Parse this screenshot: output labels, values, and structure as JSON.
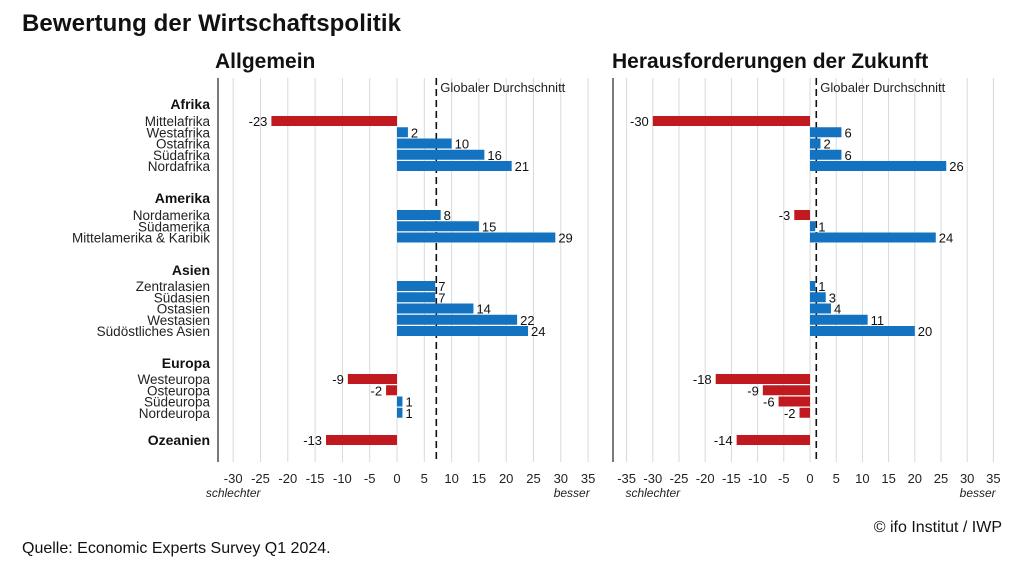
{
  "title": "Bewertung der Wirtschaftspolitik",
  "source": "Quelle: Economic Experts Survey Q1 2024.",
  "credit": "© ifo Institut / IWP",
  "reference_line_label": "Globaler Durchschnitt",
  "axis_labels": {
    "left": "schlechter",
    "right": "besser"
  },
  "colors": {
    "positive": "#1473c1",
    "negative": "#c0191f",
    "reference_line": "#111111",
    "grid": "#d9d9d9"
  },
  "chart_data": [
    {
      "type": "bar",
      "orientation": "horizontal",
      "title": "Allgemein",
      "xlim": [
        -35,
        35
      ],
      "xticks": [
        -30,
        -25,
        -20,
        -15,
        -10,
        -5,
        0,
        5,
        10,
        15,
        20,
        25,
        30,
        35
      ],
      "reference_value": 7.2,
      "groups": [
        {
          "name": "Afrika",
          "categories": [
            "Mittelafrika",
            "Westafrika",
            "Ostafrika",
            "Südafrika",
            "Nordafrika"
          ],
          "values": [
            -23,
            2,
            10,
            16,
            21
          ]
        },
        {
          "name": "Amerika",
          "categories": [
            "Nordamerika",
            "Südamerika",
            "Mittelamerika & Karibik"
          ],
          "values": [
            8,
            15,
            29
          ]
        },
        {
          "name": "Asien",
          "categories": [
            "Zentralasien",
            "Südasien",
            "Ostasien",
            "Westasien",
            "Südöstliches Asien"
          ],
          "values": [
            7,
            7,
            14,
            22,
            24
          ]
        },
        {
          "name": "Europa",
          "categories": [
            "Westeuropa",
            "Osteuropa",
            "Südeuropa",
            "Nordeuropa"
          ],
          "values": [
            -9,
            -2,
            1,
            1
          ]
        },
        {
          "name": "Ozeanien",
          "categories": [],
          "values": [
            -13
          ]
        }
      ]
    },
    {
      "type": "bar",
      "orientation": "horizontal",
      "title": "Herausforderungen der Zukunft",
      "xlim": [
        -35,
        35
      ],
      "xticks": [
        -35,
        -30,
        -25,
        -20,
        -15,
        -10,
        -5,
        0,
        5,
        10,
        15,
        20,
        25,
        30,
        35
      ],
      "reference_value": 1.2,
      "groups": [
        {
          "name": "Afrika",
          "categories": [
            "Mittelafrika",
            "Westafrika",
            "Ostafrika",
            "Südafrika",
            "Nordafrika"
          ],
          "values": [
            -30,
            6,
            2,
            6,
            26
          ]
        },
        {
          "name": "Amerika",
          "categories": [
            "Nordamerika",
            "Südamerika",
            "Mittelamerika & Karibik"
          ],
          "values": [
            -3,
            1,
            24
          ]
        },
        {
          "name": "Asien",
          "categories": [
            "Zentralasien",
            "Südasien",
            "Ostasien",
            "Westasien",
            "Südöstliches Asien"
          ],
          "values": [
            1,
            3,
            4,
            11,
            20
          ]
        },
        {
          "name": "Europa",
          "categories": [
            "Westeuropa",
            "Osteuropa",
            "Südeuropa",
            "Nordeuropa"
          ],
          "values": [
            -18,
            -9,
            -6,
            -2
          ]
        },
        {
          "name": "Ozeanien",
          "categories": [],
          "values": [
            -14
          ]
        }
      ]
    }
  ]
}
